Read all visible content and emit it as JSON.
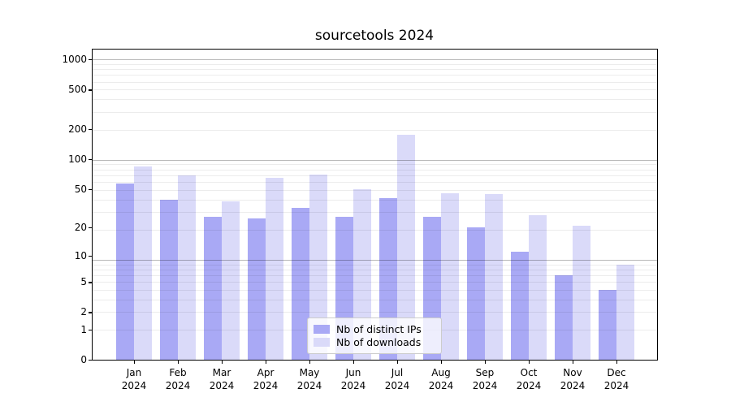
{
  "chart_data": {
    "type": "bar",
    "title": "sourcetools 2024",
    "categories": [
      "Jan",
      "Feb",
      "Mar",
      "Apr",
      "May",
      "Jun",
      "Jul",
      "Aug",
      "Sep",
      "Oct",
      "Nov",
      "Dec"
    ],
    "year": "2024",
    "series": [
      {
        "name": "Nb of distinct IPs",
        "color": "#a9a9f5",
        "values": [
          57,
          39,
          26,
          25,
          32,
          26,
          40,
          26,
          20,
          11,
          6,
          4
        ]
      },
      {
        "name": "Nb of downloads",
        "color": "#dadaf9",
        "values": [
          85,
          69,
          37,
          65,
          70,
          50,
          177,
          45,
          44,
          27,
          21,
          8
        ]
      }
    ],
    "y_scale": "log1p",
    "y_ticks": [
      0,
      1,
      2,
      5,
      10,
      20,
      50,
      100,
      200,
      500,
      1000
    ],
    "ylim": [
      0,
      1270
    ],
    "xlabel": "",
    "ylabel": "",
    "grid": {
      "major_color": "#b8b8b8",
      "minor_color": "#ececec",
      "minor_on": true
    },
    "legend": {
      "position": "lower center",
      "labels": [
        "Nb of distinct IPs",
        "Nb of downloads"
      ]
    }
  }
}
